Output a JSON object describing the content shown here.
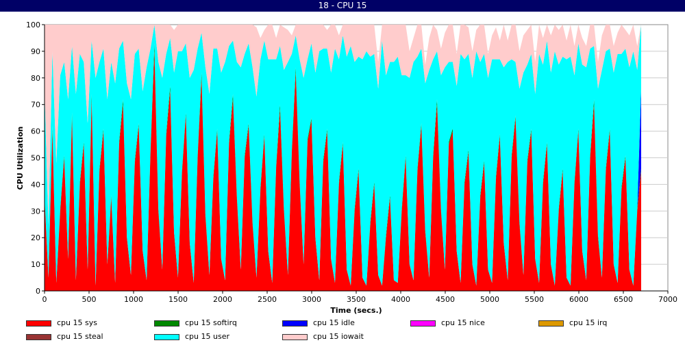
{
  "window": {
    "title": "18 - CPU 15"
  },
  "chart_data": {
    "type": "area",
    "xlabel": "Time (secs.)",
    "ylabel": "CPU Utilization",
    "xlim": [
      0,
      7000
    ],
    "ylim": [
      0,
      100
    ],
    "xticks": [
      0,
      500,
      1000,
      1500,
      2000,
      2500,
      3000,
      3500,
      4000,
      4500,
      5000,
      5500,
      6000,
      6500,
      7000
    ],
    "yticks": [
      0,
      10,
      20,
      30,
      40,
      50,
      60,
      70,
      80,
      90,
      100
    ],
    "grid": true,
    "legend_position": "bottom",
    "data_xmax": 6700,
    "series": [
      {
        "name": "cpu 15 sys",
        "color": "#ff0000",
        "values": [
          35,
          5,
          60,
          3,
          30,
          50,
          12,
          65,
          4,
          40,
          55,
          8,
          72,
          2,
          45,
          60,
          10,
          35,
          3,
          55,
          70,
          20,
          6,
          48,
          62,
          15,
          4,
          52,
          90,
          30,
          8,
          58,
          75,
          22,
          5,
          44,
          66,
          18,
          3,
          50,
          80,
          28,
          6,
          42,
          60,
          12,
          4,
          55,
          72,
          35,
          8,
          50,
          62,
          25,
          5,
          38,
          58,
          15,
          3,
          46,
          68,
          30,
          6,
          52,
          82,
          40,
          10,
          56,
          64,
          20,
          4,
          48,
          60,
          12,
          3,
          40,
          55,
          8,
          2,
          30,
          45,
          5,
          2,
          25,
          40,
          6,
          2,
          20,
          35,
          4,
          3,
          30,
          50,
          10,
          4,
          45,
          62,
          22,
          5,
          50,
          70,
          30,
          8,
          55,
          60,
          15,
          3,
          40,
          52,
          10,
          2,
          35,
          48,
          8,
          3,
          42,
          58,
          18,
          4,
          50,
          65,
          25,
          6,
          48,
          60,
          12,
          3,
          40,
          55,
          10,
          2,
          30,
          45,
          5,
          2,
          40,
          60,
          15,
          4,
          50,
          70,
          20,
          5,
          45,
          60,
          10,
          3,
          38,
          50,
          8,
          2,
          30,
          45
        ]
      },
      {
        "name": "cpu 15 softirq",
        "color": "#008800",
        "values": [
          1,
          0,
          2,
          0,
          1,
          1,
          0,
          2,
          0,
          1,
          1,
          0,
          2,
          0,
          1,
          1,
          0,
          1,
          0,
          1,
          2,
          0,
          0,
          1,
          1,
          0,
          0,
          1,
          3,
          1,
          0,
          1,
          2,
          0,
          0,
          1,
          1,
          0,
          0,
          1,
          2,
          1,
          0,
          1,
          1,
          0,
          0,
          1,
          2,
          1,
          0,
          1,
          1,
          1,
          0,
          1,
          1,
          0,
          0,
          1,
          2,
          1,
          0,
          1,
          2,
          1,
          0,
          1,
          1,
          0,
          0,
          1,
          1,
          0,
          0,
          1,
          1,
          0,
          0,
          1,
          1,
          0,
          0,
          1,
          1,
          0,
          0,
          1,
          1,
          0,
          0,
          1,
          1,
          0,
          0,
          1,
          1,
          1,
          0,
          1,
          2,
          1,
          0,
          1,
          1,
          0,
          0,
          1,
          1,
          0,
          0,
          1,
          1,
          0,
          0,
          1,
          1,
          0,
          0,
          1,
          1,
          1,
          0,
          1,
          1,
          0,
          0,
          1,
          1,
          0,
          0,
          1,
          1,
          0,
          0,
          1,
          1,
          0,
          0,
          1,
          2,
          1,
          0,
          1,
          1,
          0,
          0,
          1,
          1,
          0,
          0,
          1,
          1
        ]
      },
      {
        "name": "cpu 15 idle",
        "color": "#0000ff",
        "values": [
          0,
          0,
          0,
          0,
          0,
          0,
          0,
          0,
          0,
          0,
          0,
          0,
          0,
          0,
          0,
          0,
          0,
          0,
          0,
          0,
          0,
          0,
          0,
          0,
          0,
          0,
          0,
          0,
          0,
          0,
          0,
          0,
          0,
          0,
          0,
          0,
          0,
          0,
          0,
          0,
          0,
          0,
          0,
          0,
          0,
          0,
          0,
          0,
          0,
          0,
          0,
          0,
          0,
          0,
          0,
          0,
          0,
          0,
          0,
          0,
          0,
          0,
          0,
          0,
          0,
          0,
          0,
          0,
          0,
          0,
          0,
          0,
          0,
          0,
          0,
          0,
          0,
          0,
          0,
          0,
          0,
          0,
          0,
          0,
          0,
          0,
          0,
          0,
          0,
          0,
          0,
          0,
          0,
          0,
          0,
          0,
          0,
          0,
          0,
          0,
          0,
          0,
          0,
          0,
          0,
          0,
          0,
          0,
          0,
          0,
          0,
          0,
          0,
          0,
          0,
          0,
          0,
          0,
          0,
          0,
          0,
          0,
          0,
          0,
          0,
          0,
          0,
          0,
          0,
          0,
          0,
          0,
          0,
          0,
          0,
          0,
          0,
          0,
          0,
          0,
          0,
          0,
          0,
          0,
          0,
          0,
          0,
          0,
          0,
          0,
          0,
          0,
          30
        ]
      },
      {
        "name": "cpu 15 nice",
        "color": "#ff00ff",
        "values": [
          0
        ]
      },
      {
        "name": "cpu 15 irq",
        "color": "#dd9900",
        "values": [
          0
        ]
      },
      {
        "name": "cpu 15 steal",
        "color": "#993333",
        "values": [
          0
        ]
      },
      {
        "name": "cpu 15 user",
        "color": "#00ffff",
        "values": [
          40,
          20,
          28,
          45,
          50,
          35,
          60,
          25,
          70,
          48,
          30,
          55,
          20,
          78,
          40,
          30,
          62,
          50,
          75,
          35,
          22,
          58,
          66,
          40,
          28,
          60,
          80,
          38,
          7,
          55,
          72,
          30,
          18,
          60,
          85,
          45,
          26,
          62,
          80,
          40,
          15,
          55,
          68,
          48,
          30,
          70,
          82,
          36,
          20,
          50,
          76,
          38,
          30,
          58,
          68,
          48,
          35,
          72,
          84,
          40,
          22,
          52,
          80,
          36,
          12,
          46,
          70,
          30,
          28,
          62,
          86,
          42,
          30,
          70,
          88,
          46,
          40,
          80,
          90,
          55,
          42,
          82,
          88,
          62,
          48,
          70,
          92,
          60,
          50,
          82,
          85,
          50,
          30,
          70,
          82,
          42,
          28,
          55,
          78,
          36,
          18,
          50,
          76,
          30,
          25,
          62,
          86,
          46,
          36,
          70,
          88,
          50,
          40,
          72,
          84,
          44,
          28,
          66,
          82,
          36,
          20,
          50,
          76,
          36,
          28,
          62,
          86,
          44,
          38,
          72,
          88,
          54,
          42,
          82,
          86,
          40,
          32,
          70,
          80,
          40,
          20,
          55,
          78,
          44,
          30,
          72,
          86,
          50,
          40,
          76,
          88,
          52,
          45
        ]
      },
      {
        "name": "cpu 15 iowait",
        "color": "#ffcccc",
        "values": [
          24,
          75,
          10,
          52,
          19,
          14,
          28,
          8,
          26,
          11,
          14,
          37,
          6,
          20,
          14,
          9,
          28,
          14,
          22,
          9,
          6,
          22,
          28,
          11,
          9,
          25,
          16,
          9,
          0,
          14,
          20,
          12,
          5,
          16,
          10,
          10,
          7,
          20,
          17,
          9,
          3,
          16,
          26,
          9,
          9,
          18,
          14,
          8,
          6,
          14,
          16,
          11,
          7,
          16,
          26,
          8,
          4,
          14,
          13,
          8,
          8,
          16,
          12,
          7,
          6,
          13,
          20,
          14,
          8,
          18,
          10,
          10,
          7,
          20,
          9,
          9,
          5,
          12,
          8,
          14,
          12,
          13,
          10,
          12,
          11,
          10,
          6,
          19,
          14,
          14,
          12,
          20,
          19,
          10,
          9,
          15,
          9,
          7,
          12,
          13,
          8,
          10,
          13,
          15,
          14,
          12,
          11,
          19,
          10,
          10,
          8,
          16,
          14,
          9,
          9,
          12,
          7,
          16,
          8,
          13,
          14,
          14,
          14,
          13,
          11,
          12,
          14,
          10,
          9,
          14,
          10,
          13,
          12,
          7,
          12,
          11,
          13,
          10,
          8,
          15,
          14,
          10,
          13,
          13,
          10,
          10,
          8,
          14,
          7,
          12,
          11,
          9,
          0
        ]
      }
    ],
    "legend_entries": [
      "cpu 15 sys",
      "cpu 15 softirq",
      "cpu 15 idle",
      "cpu 15 nice",
      "cpu 15 irq",
      "cpu 15 steal",
      "cpu 15 user",
      "cpu 15 iowait"
    ]
  }
}
